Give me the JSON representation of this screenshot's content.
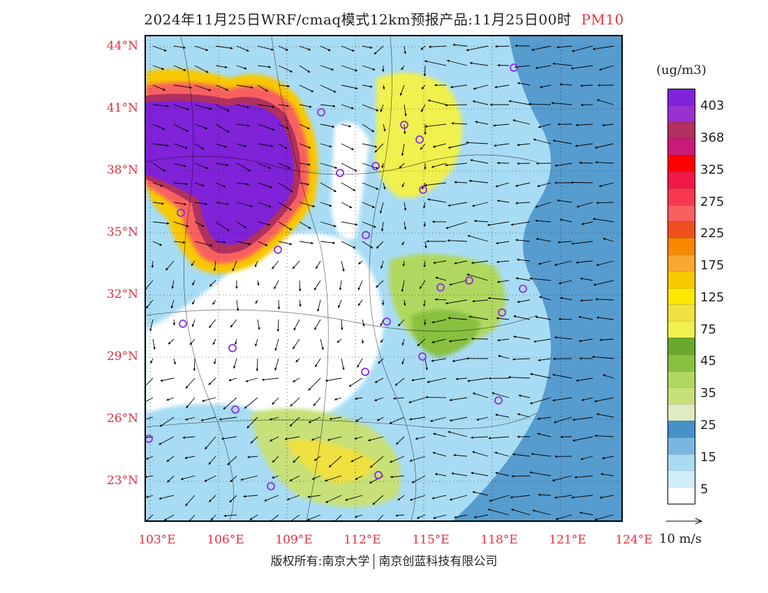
{
  "title": {
    "text": "2024年11月25日WRF/cmaq模式12km预报产品:11月25日00时",
    "product": "PM10"
  },
  "axes": {
    "lat_labels": [
      "44°N",
      "41°N",
      "38°N",
      "35°N",
      "32°N",
      "29°N",
      "26°N",
      "23°N"
    ],
    "lon_labels": [
      "103°E",
      "106°E",
      "109°E",
      "112°E",
      "115°E",
      "118°E",
      "121°E",
      "124°E"
    ]
  },
  "legend": {
    "unit": "(ug/m3)",
    "colors": [
      "#7f22d8",
      "#9a30d0",
      "#b03060",
      "#c81a78",
      "#ff0000",
      "#f01848",
      "#f83850",
      "#f86060",
      "#f05020",
      "#f88800",
      "#f8a830",
      "#f8c800",
      "#ffe800",
      "#f0e040",
      "#f0f050",
      "#6aa830",
      "#88c040",
      "#b0d860",
      "#c8e078",
      "#e0ecc0",
      "#4890c8",
      "#78b8e0",
      "#a8dcf4",
      "#d0eefa",
      "#ffffff"
    ],
    "labels": [
      "403",
      "368",
      "325",
      "275",
      "225",
      "175",
      "125",
      "75",
      "45",
      "35",
      "25",
      "15",
      "5"
    ]
  },
  "wind_reference": "10 m/s",
  "footer": {
    "left": "版权所有:南京大学",
    "right": "南京创蓝科技有限公司"
  }
}
